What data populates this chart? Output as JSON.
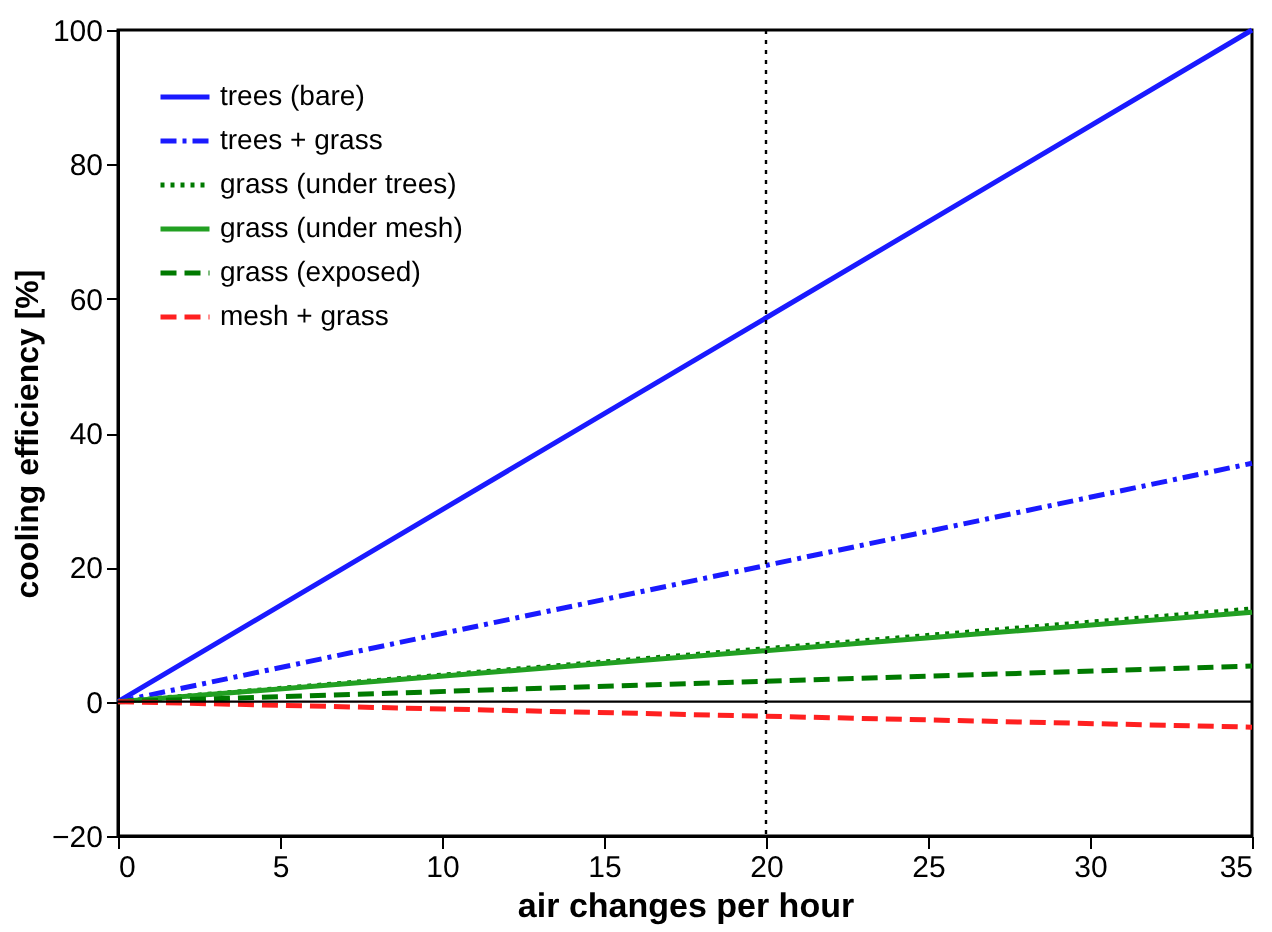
{
  "chart_data": {
    "type": "line",
    "xlabel": "air changes per hour",
    "ylabel": "cooling efficiency [%]",
    "x": [
      0,
      35
    ],
    "series": [
      {
        "name": "trees (bare)",
        "color": "#1a1aff",
        "values": [
          0,
          100
        ],
        "line_style": "solid"
      },
      {
        "name": "trees + grass",
        "color": "#1a1aff",
        "values": [
          0,
          35.5
        ],
        "line_style": "dashdot"
      },
      {
        "name": "grass (under trees)",
        "color": "#007a00",
        "values": [
          0,
          13.8
        ],
        "line_style": "dotted"
      },
      {
        "name": "grass (under mesh)",
        "color": "#22a022",
        "values": [
          0,
          13.3
        ],
        "line_style": "solid"
      },
      {
        "name": "grass (exposed)",
        "color": "#007a00",
        "values": [
          0,
          5.3
        ],
        "line_style": "dashed"
      },
      {
        "name": "mesh + grass",
        "color": "#ff2020",
        "values": [
          0,
          -3.8
        ],
        "line_style": "dashed"
      }
    ],
    "xlim": [
      0,
      35
    ],
    "xticks": [
      0,
      5,
      10,
      15,
      20,
      25,
      30,
      35
    ],
    "ylim": [
      -20,
      100
    ],
    "yticks": [
      -20,
      0,
      20,
      40,
      60,
      80,
      100
    ],
    "ref_lines": [
      {
        "axis": "x",
        "value": 20,
        "color": "#000000",
        "line_style": "dotted"
      },
      {
        "axis": "y",
        "value": 0,
        "color": "#000000",
        "line_style": "solid"
      }
    ],
    "grid": false,
    "legend": "top left"
  }
}
